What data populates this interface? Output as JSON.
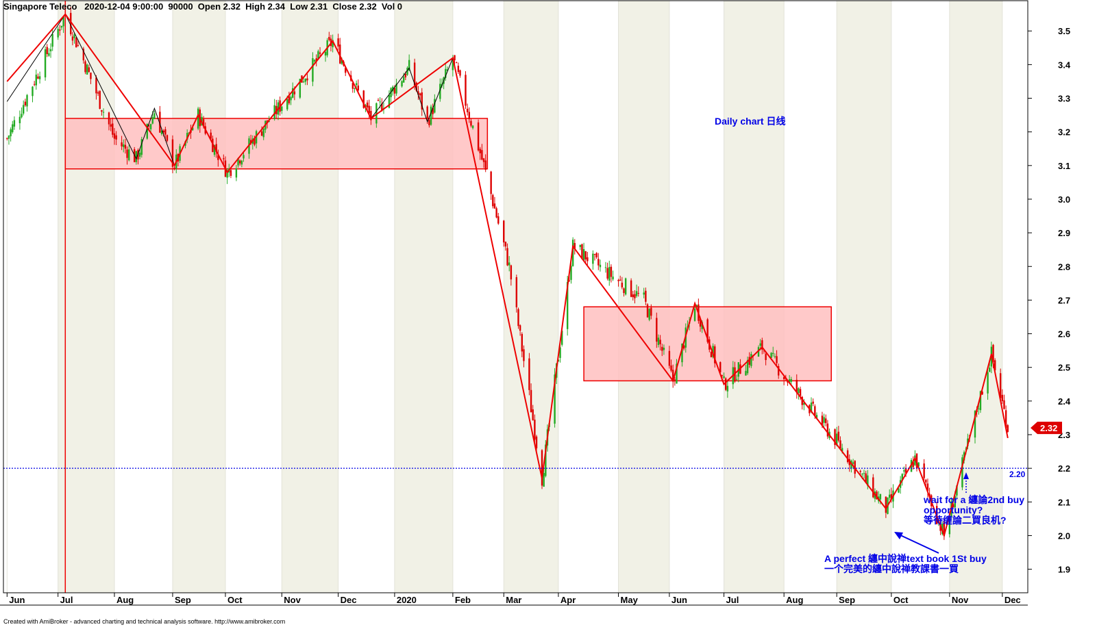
{
  "header": {
    "symbol": "Singapore Teleco",
    "datetime": "2020-12-04 9:00:00",
    "interval": "90000",
    "open": "Open 2.32",
    "high": "High 2.34",
    "low": "Low 2.31",
    "close": "Close 2.32",
    "vol": "Vol 0"
  },
  "footer_text": "Created with AmiBroker - advanced charting and technical analysis software. http://www.amibroker.com",
  "annotations": {
    "daily_chart": "Daily chart 日线",
    "wait_line1": "wait for a 纏論2nd buy",
    "wait_line2": "opportunity?",
    "wait_line3": "等待缠論二買良机?",
    "perfect_line1": "A perfect 纏中說禅text book 1St buy",
    "perfect_line2": "一个完美的纏中說禅教課書一買",
    "level_label": "2.20",
    "price_tag": "2.32"
  },
  "colors": {
    "up_candle": "#22aa22",
    "down_candle": "#dd0000",
    "zigzag": "#ee0000",
    "zone_fill": "#ffc0c0",
    "annotation": "#0000e6",
    "band_shade": "#f1f1e6"
  },
  "chart_data": {
    "type": "candlestick",
    "title": "Singapore Teleco",
    "ylim": [
      1.83,
      3.59
    ],
    "yticks": [
      1.9,
      2.0,
      2.1,
      2.2,
      2.3,
      2.4,
      2.5,
      2.6,
      2.7,
      2.8,
      2.9,
      3.0,
      3.1,
      3.2,
      3.3,
      3.4,
      3.5
    ],
    "x_range": [
      "2019-06-01",
      "2020-12-15"
    ],
    "month_ticks": [
      {
        "label": "Jun",
        "date": "2019-06-03"
      },
      {
        "label": "Jul",
        "date": "2019-07-01"
      },
      {
        "label": "Aug",
        "date": "2019-08-01"
      },
      {
        "label": "Sep",
        "date": "2019-09-02"
      },
      {
        "label": "Oct",
        "date": "2019-10-01"
      },
      {
        "label": "Nov",
        "date": "2019-11-01"
      },
      {
        "label": "Dec",
        "date": "2019-12-02"
      },
      {
        "label": "2020",
        "date": "2020-01-02"
      },
      {
        "label": "Feb",
        "date": "2020-02-03"
      },
      {
        "label": "Mar",
        "date": "2020-03-02"
      },
      {
        "label": "Apr",
        "date": "2020-04-01"
      },
      {
        "label": "May",
        "date": "2020-05-04"
      },
      {
        "label": "Jun",
        "date": "2020-06-01"
      },
      {
        "label": "Jul",
        "date": "2020-07-01"
      },
      {
        "label": "Aug",
        "date": "2020-08-03"
      },
      {
        "label": "Sep",
        "date": "2020-09-01"
      },
      {
        "label": "Oct",
        "date": "2020-10-01"
      },
      {
        "label": "Nov",
        "date": "2020-11-02"
      },
      {
        "label": "Dec",
        "date": "2020-12-01"
      }
    ],
    "price_path": [
      {
        "x": "2019-06-03",
        "y": 3.18
      },
      {
        "x": "2019-07-05",
        "y": 3.55
      },
      {
        "x": "2019-08-01",
        "y": 3.18
      },
      {
        "x": "2019-08-13",
        "y": 3.12
      },
      {
        "x": "2019-08-23",
        "y": 3.26
      },
      {
        "x": "2019-09-03",
        "y": 3.1
      },
      {
        "x": "2019-09-16",
        "y": 3.25
      },
      {
        "x": "2019-10-02",
        "y": 3.08
      },
      {
        "x": "2019-11-05",
        "y": 3.31
      },
      {
        "x": "2019-11-29",
        "y": 3.47
      },
      {
        "x": "2019-12-20",
        "y": 3.24
      },
      {
        "x": "2020-01-10",
        "y": 3.39
      },
      {
        "x": "2020-01-20",
        "y": 3.23
      },
      {
        "x": "2020-02-03",
        "y": 3.42
      },
      {
        "x": "2020-02-20",
        "y": 3.1
      },
      {
        "x": "2020-03-05",
        "y": 2.8
      },
      {
        "x": "2020-03-23",
        "y": 2.17
      },
      {
        "x": "2020-04-09",
        "y": 2.86
      },
      {
        "x": "2020-05-18",
        "y": 2.7
      },
      {
        "x": "2020-06-03",
        "y": 2.46
      },
      {
        "x": "2020-06-15",
        "y": 2.69
      },
      {
        "x": "2020-07-01",
        "y": 2.45
      },
      {
        "x": "2020-07-22",
        "y": 2.56
      },
      {
        "x": "2020-08-04",
        "y": 2.47
      },
      {
        "x": "2020-09-01",
        "y": 2.28
      },
      {
        "x": "2020-09-28",
        "y": 2.08
      },
      {
        "x": "2020-10-14",
        "y": 2.23
      },
      {
        "x": "2020-10-30",
        "y": 2.0
      },
      {
        "x": "2020-11-25",
        "y": 2.54
      },
      {
        "x": "2020-12-04",
        "y": 2.32
      }
    ],
    "zigzag_red": [
      {
        "x": "2019-06-03",
        "y": 3.35
      },
      {
        "x": "2019-07-05",
        "y": 3.55
      },
      {
        "x": "2019-09-03",
        "y": 3.1
      },
      {
        "x": "2019-09-16",
        "y": 3.25
      },
      {
        "x": "2019-10-02",
        "y": 3.08
      },
      {
        "x": "2019-11-29",
        "y": 3.47
      },
      {
        "x": "2019-12-20",
        "y": 3.24
      },
      {
        "x": "2020-02-03",
        "y": 3.42
      },
      {
        "x": "2020-03-23",
        "y": 2.17
      },
      {
        "x": "2020-04-09",
        "y": 2.86
      },
      {
        "x": "2020-06-03",
        "y": 2.46
      },
      {
        "x": "2020-06-15",
        "y": 2.69
      },
      {
        "x": "2020-07-01",
        "y": 2.45
      },
      {
        "x": "2020-07-22",
        "y": 2.56
      },
      {
        "x": "2020-09-28",
        "y": 2.08
      },
      {
        "x": "2020-10-14",
        "y": 2.23
      },
      {
        "x": "2020-10-30",
        "y": 2.0
      },
      {
        "x": "2020-11-25",
        "y": 2.54
      },
      {
        "x": "2020-12-04",
        "y": 2.29
      }
    ],
    "zigzag_black": [
      {
        "x": "2019-06-03",
        "y": 3.29
      },
      {
        "x": "2019-07-05",
        "y": 3.55
      },
      {
        "x": "2019-08-13",
        "y": 3.12
      },
      {
        "x": "2019-08-23",
        "y": 3.27
      },
      {
        "x": "2019-09-03",
        "y": 3.1
      },
      {
        "x": "2019-09-16",
        "y": 3.25
      },
      {
        "x": "2019-10-02",
        "y": 3.08
      },
      {
        "x": "2019-11-29",
        "y": 3.47
      },
      {
        "x": "2019-12-20",
        "y": 3.24
      },
      {
        "x": "2020-01-10",
        "y": 3.39
      },
      {
        "x": "2020-01-20",
        "y": 3.23
      },
      {
        "x": "2020-02-03",
        "y": 3.42
      },
      {
        "x": "2020-03-23",
        "y": 2.17
      },
      {
        "x": "2020-04-09",
        "y": 2.86
      },
      {
        "x": "2020-06-03",
        "y": 2.46
      },
      {
        "x": "2020-06-15",
        "y": 2.69
      },
      {
        "x": "2020-07-01",
        "y": 2.45
      },
      {
        "x": "2020-07-22",
        "y": 2.56
      },
      {
        "x": "2020-09-28",
        "y": 2.08
      },
      {
        "x": "2020-10-14",
        "y": 2.23
      },
      {
        "x": "2020-10-30",
        "y": 2.0
      },
      {
        "x": "2020-11-25",
        "y": 2.54
      },
      {
        "x": "2020-12-04",
        "y": 2.29
      }
    ],
    "zones": [
      {
        "x0": "2019-07-05",
        "x1": "2020-02-22",
        "y0": 3.09,
        "y1": 3.24
      },
      {
        "x0": "2020-04-15",
        "x1": "2020-08-29",
        "y0": 2.46,
        "y1": 2.68
      }
    ],
    "vline_date": "2019-07-05",
    "hline_level": 2.2,
    "last_close": 2.32
  }
}
